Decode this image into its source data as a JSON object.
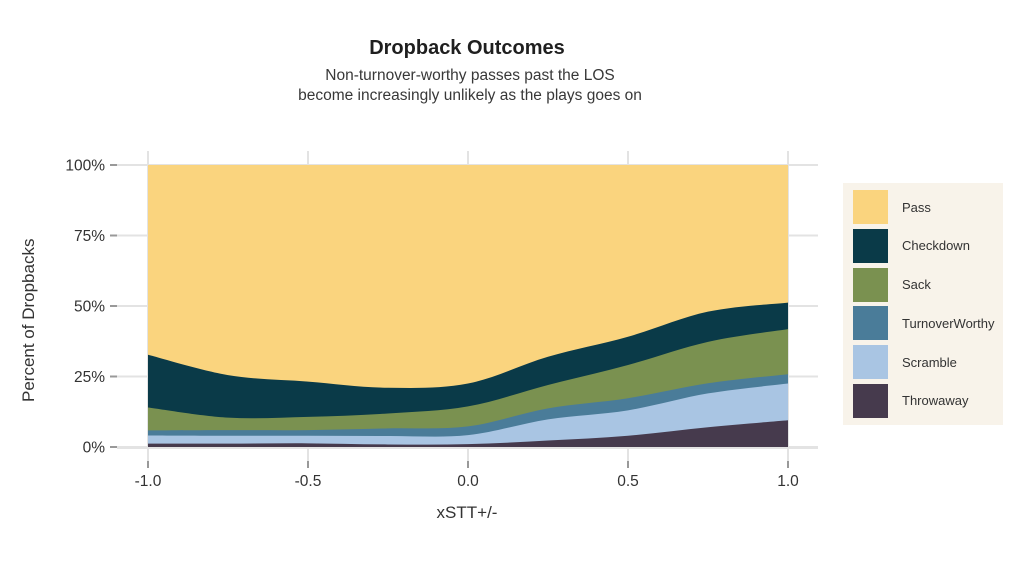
{
  "header": {
    "title": "Dropback Outcomes",
    "subtitle_line1": "Non-turnover-worthy passes past the LOS",
    "subtitle_line2": "become increasingly unlikely as the plays goes on"
  },
  "axes": {
    "y_title": "Percent of Dropbacks",
    "x_title": "xSTT+/-",
    "x_tick_labels": [
      "-1.0",
      "-0.5",
      "0.0",
      "0.5",
      "1.0"
    ],
    "y_tick_labels": [
      "0%",
      "25%",
      "50%",
      "75%",
      "100%"
    ]
  },
  "legend": {
    "items": [
      {
        "label": "Pass",
        "color": "#fad47e"
      },
      {
        "label": "Checkdown",
        "color": "#0a3a48"
      },
      {
        "label": "Sack",
        "color": "#7a9150"
      },
      {
        "label": "TurnoverWorthy",
        "color": "#4a7c99"
      },
      {
        "label": "Scramble",
        "color": "#a9c5e3"
      },
      {
        "label": "Throwaway",
        "color": "#463a4d"
      }
    ]
  },
  "chart_data": {
    "type": "area",
    "stacked": true,
    "title": "Dropback Outcomes",
    "xlabel": "xSTT+/-",
    "ylabel": "Percent of Dropbacks",
    "xlim": [
      -1.0,
      1.0
    ],
    "ylim": [
      0,
      100
    ],
    "y_unit": "percent",
    "grid": true,
    "legend_position": "right",
    "x": [
      -1.0,
      -0.75,
      -0.5,
      -0.25,
      0.0,
      0.25,
      0.5,
      0.75,
      1.0
    ],
    "stack_note": "series listed top-to-bottom as in legend; stacked bottom-up from last item (Throwaway at bottom, Pass on top)",
    "series": [
      {
        "name": "Pass",
        "color": "#fad47e",
        "values": [
          67.3,
          74.5,
          76.8,
          79.0,
          77.5,
          68.0,
          60.9,
          52.0,
          48.8
        ]
      },
      {
        "name": "Checkdown",
        "color": "#0a3a48",
        "values": [
          18.7,
          15.1,
          12.5,
          9.1,
          8.1,
          10.0,
          10.0,
          10.7,
          9.4
        ]
      },
      {
        "name": "Sack",
        "color": "#7a9150",
        "values": [
          8.1,
          4.4,
          4.7,
          5.3,
          7.1,
          8.3,
          11.8,
          14.7,
          16.0
        ]
      },
      {
        "name": "TurnoverWorthy",
        "color": "#4a7c99",
        "values": [
          1.8,
          2.0,
          2.0,
          2.7,
          3.1,
          3.9,
          4.3,
          3.6,
          3.3
        ]
      },
      {
        "name": "Scramble",
        "color": "#a9c5e3",
        "values": [
          2.9,
          2.8,
          2.7,
          3.0,
          3.2,
          7.5,
          9.0,
          12.0,
          13.0
        ]
      },
      {
        "name": "Throwaway",
        "color": "#463a4d",
        "values": [
          1.2,
          1.2,
          1.3,
          0.9,
          1.0,
          2.3,
          4.0,
          7.0,
          9.5
        ]
      }
    ]
  },
  "colors": {
    "page_bg": "#ffffff",
    "panel_bg": "#ffffff",
    "gridline": "#e3e3e3",
    "tick": "#999999",
    "text": "#333333",
    "title_text": "#1f1f1f",
    "legend_bg": "#f8f3ea"
  }
}
